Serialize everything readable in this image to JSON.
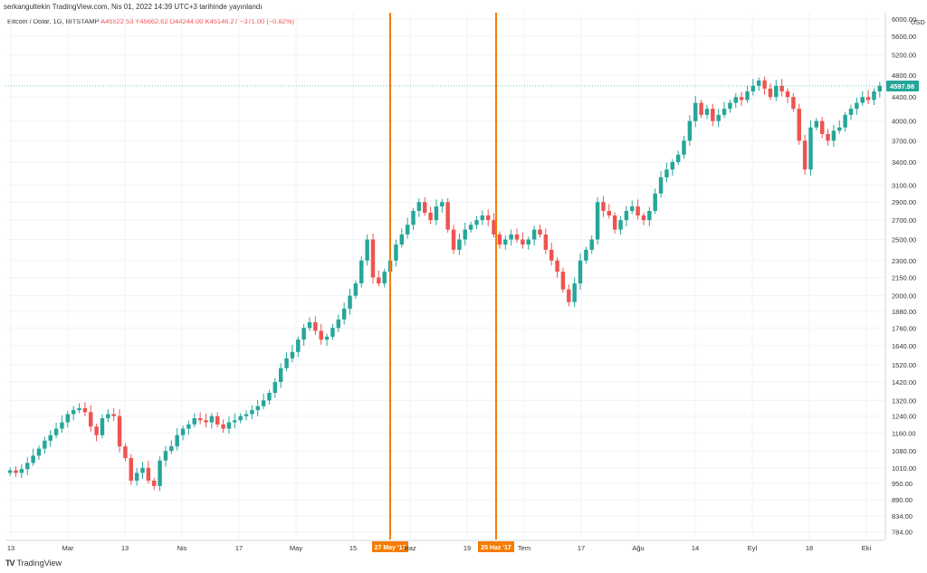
{
  "header": {
    "attribution": "serkangultekin TradingView.com, Nis 01, 2022 14:39 UTC+3 tarihinde yayınlandı",
    "symbol": "Bitcoin / Dolar, 1G, BITSTAMP",
    "open": "A45522.53",
    "high": "Y45662.62",
    "low": "D44244.00",
    "close": "K45146.27",
    "change": "−371.00 (−0.82%)"
  },
  "footer": {
    "logo": "TradingView"
  },
  "colors": {
    "up": "#26a69a",
    "down": "#ef5350",
    "marker": "#f57c00",
    "grid": "#f0f3fa"
  },
  "chart_data": {
    "type": "candlestick",
    "currency": "USD",
    "scale": "log",
    "last_price": "4597.98",
    "y_ticks": [
      "6000.00",
      "5600.00",
      "5200.00",
      "4800.00",
      "4400.00",
      "4000.00",
      "3700.00",
      "3400.00",
      "3100.00",
      "2900.00",
      "2700.00",
      "2500.00",
      "2300.00",
      "2150.00",
      "2000.00",
      "1880.00",
      "1760.00",
      "1640.00",
      "1520.00",
      "1420.00",
      "1320.00",
      "1240.00",
      "1160.00",
      "1080.00",
      "1010.00",
      "950.00",
      "890.00",
      "834.00",
      "784.00"
    ],
    "x_ticks": [
      "13",
      "Mar",
      "13",
      "Nis",
      "17",
      "May",
      "15",
      "Haz",
      "19",
      "Tem",
      "17",
      "Ağu",
      "14",
      "Eyl",
      "18",
      "Eki"
    ],
    "markers": [
      {
        "date": "27 May '17"
      },
      {
        "date": "25 Haz '17"
      }
    ],
    "closes": [
      1000,
      990,
      1005,
      1030,
      1060,
      1090,
      1125,
      1150,
      1180,
      1210,
      1250,
      1270,
      1280,
      1260,
      1190,
      1150,
      1230,
      1250,
      1240,
      1100,
      1050,
      960,
      990,
      1010,
      960,
      940,
      1040,
      1080,
      1100,
      1150,
      1180,
      1200,
      1230,
      1220,
      1210,
      1240,
      1200,
      1180,
      1210,
      1220,
      1240,
      1250,
      1270,
      1290,
      1320,
      1360,
      1420,
      1500,
      1560,
      1600,
      1680,
      1760,
      1800,
      1740,
      1680,
      1700,
      1760,
      1820,
      1900,
      2000,
      2100,
      2300,
      2500,
      2150,
      2100,
      2200,
      2300,
      2450,
      2550,
      2650,
      2800,
      2900,
      2780,
      2700,
      2850,
      2900,
      2600,
      2400,
      2500,
      2600,
      2650,
      2700,
      2750,
      2700,
      2550,
      2450,
      2500,
      2550,
      2500,
      2450,
      2500,
      2600,
      2550,
      2400,
      2300,
      2200,
      2050,
      1950,
      2100,
      2300,
      2400,
      2500,
      2900,
      2800,
      2750,
      2600,
      2700,
      2800,
      2850,
      2750,
      2700,
      2800,
      3000,
      3200,
      3300,
      3400,
      3500,
      3700,
      4000,
      4300,
      4100,
      4200,
      4000,
      4100,
      4200,
      4300,
      4400,
      4350,
      4500,
      4600,
      4700,
      4550,
      4400,
      4600,
      4500,
      4400,
      4200,
      3700,
      3300,
      3900,
      4000,
      3800,
      3700,
      3850,
      3900,
      4100,
      4200,
      4300,
      4400,
      4350,
      4500,
      4600
    ]
  }
}
